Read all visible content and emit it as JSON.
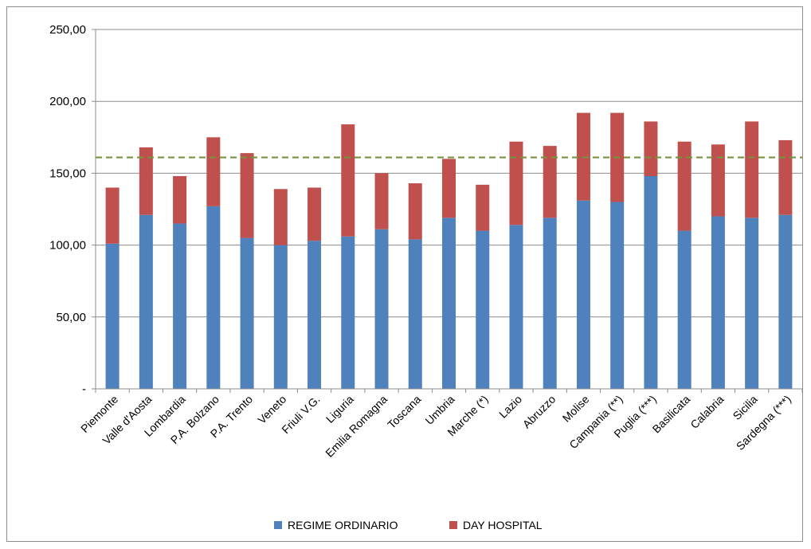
{
  "chart_data": {
    "type": "bar",
    "stacked": true,
    "categories": [
      "Piemonte",
      "Valle d'Aosta",
      "Lombardia",
      "P.A. Bolzano",
      "P.A. Trento",
      "Veneto",
      "Friuli V.G.",
      "Liguria",
      "Emilia Romagna",
      "Toscana",
      "Umbria",
      "Marche (*)",
      "Lazio",
      "Abruzzo",
      "Molise",
      "Campania (**)",
      "Puglia (***)",
      "Basilicata",
      "Calabria",
      "Sicilia",
      "Sardegna (***)"
    ],
    "series": [
      {
        "name": "REGIME ORDINARIO",
        "color": "#4f81bd",
        "values": [
          101,
          121,
          115,
          127,
          105,
          100,
          103,
          106,
          111,
          104,
          119,
          110,
          114,
          119,
          131,
          130,
          148,
          110,
          120,
          119,
          121
        ]
      },
      {
        "name": "DAY HOSPITAL",
        "color": "#c0504d",
        "values": [
          39,
          47,
          33,
          48,
          59,
          39,
          37,
          78,
          39,
          39,
          41,
          32,
          58,
          50,
          61,
          62,
          38,
          62,
          50,
          67,
          52
        ]
      }
    ],
    "reference_line": {
      "value": 161,
      "color": "#77933c",
      "style": "dashed"
    },
    "ylim": [
      0,
      250
    ],
    "yticks": [
      0,
      50,
      100,
      150,
      200,
      250
    ],
    "ytick_labels": [
      "-",
      "50,00",
      "100,00",
      "150,00",
      "200,00",
      "250,00"
    ],
    "grid": true,
    "legend_position": "bottom",
    "title": "",
    "xlabel": "",
    "ylabel": ""
  }
}
